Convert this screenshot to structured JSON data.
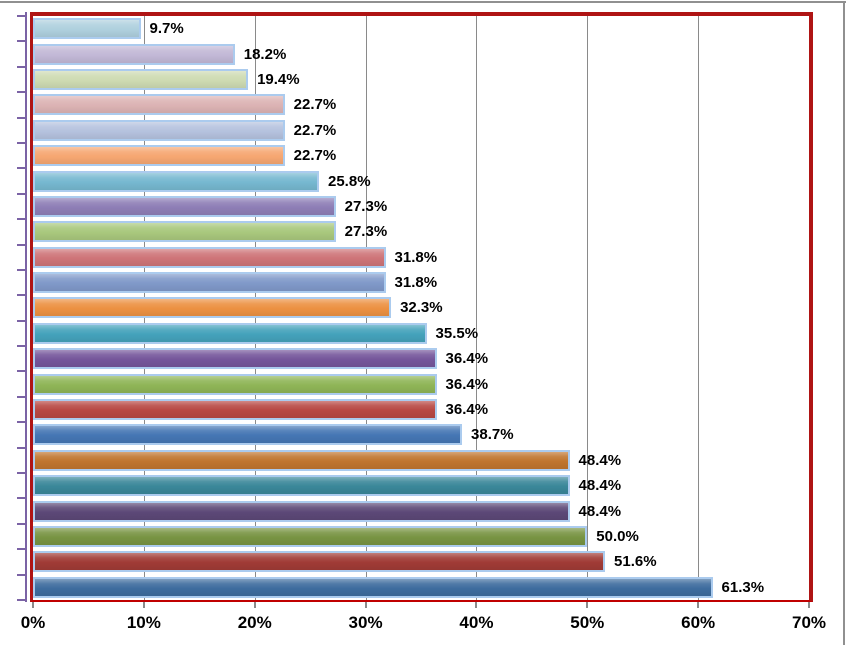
{
  "chart_data": {
    "type": "bar",
    "orientation": "horizontal",
    "x_axis": {
      "min": 0,
      "max": 70,
      "tick_step": 10,
      "tick_labels": [
        "0%",
        "10%",
        "20%",
        "30%",
        "40%",
        "50%",
        "60%",
        "70%"
      ],
      "gridlines": true
    },
    "bars": [
      {
        "value": 9.7,
        "label": "9.7%",
        "color": "#AFD0DE"
      },
      {
        "value": 18.2,
        "label": "18.2%",
        "color": "#C2B8D6"
      },
      {
        "value": 19.4,
        "label": "19.4%",
        "color": "#CEDBB2"
      },
      {
        "value": 22.7,
        "label": "22.7%",
        "color": "#DCB3B4"
      },
      {
        "value": 22.7,
        "label": "22.7%",
        "color": "#B5C2DE"
      },
      {
        "value": 22.7,
        "label": "22.7%",
        "color": "#F6A772"
      },
      {
        "value": 25.8,
        "label": "25.8%",
        "color": "#76B8D0"
      },
      {
        "value": 27.3,
        "label": "27.3%",
        "color": "#8E7EB6"
      },
      {
        "value": 27.3,
        "label": "27.3%",
        "color": "#A9C87D"
      },
      {
        "value": 31.8,
        "label": "31.8%",
        "color": "#CE7478"
      },
      {
        "value": 31.8,
        "label": "31.8%",
        "color": "#8099C9"
      },
      {
        "value": 32.3,
        "label": "32.3%",
        "color": "#EC9142"
      },
      {
        "value": 35.5,
        "label": "35.5%",
        "color": "#44A2BB"
      },
      {
        "value": 36.4,
        "label": "36.4%",
        "color": "#75569B"
      },
      {
        "value": 36.4,
        "label": "36.4%",
        "color": "#8FB557"
      },
      {
        "value": 36.4,
        "label": "36.4%",
        "color": "#B84843"
      },
      {
        "value": 38.7,
        "label": "38.7%",
        "color": "#4576B4"
      },
      {
        "value": 48.4,
        "label": "48.4%",
        "color": "#C0752E"
      },
      {
        "value": 48.4,
        "label": "48.4%",
        "color": "#3A8799"
      },
      {
        "value": 48.4,
        "label": "48.4%",
        "color": "#5C4877"
      },
      {
        "value": 50.0,
        "label": "50.0%",
        "color": "#789443"
      },
      {
        "value": 51.6,
        "label": "51.6%",
        "color": "#A03B36"
      },
      {
        "value": 61.3,
        "label": "61.3%",
        "color": "#3E6C9E"
      }
    ]
  },
  "style_colors": {
    "plot_border": "#AF1414",
    "axis_red": "#C00000",
    "y_axis": "#7B63A5",
    "gridline": "#8A8A8A",
    "bar_border": "#ABCBEE",
    "frame": "#909090",
    "text": "#000000"
  }
}
